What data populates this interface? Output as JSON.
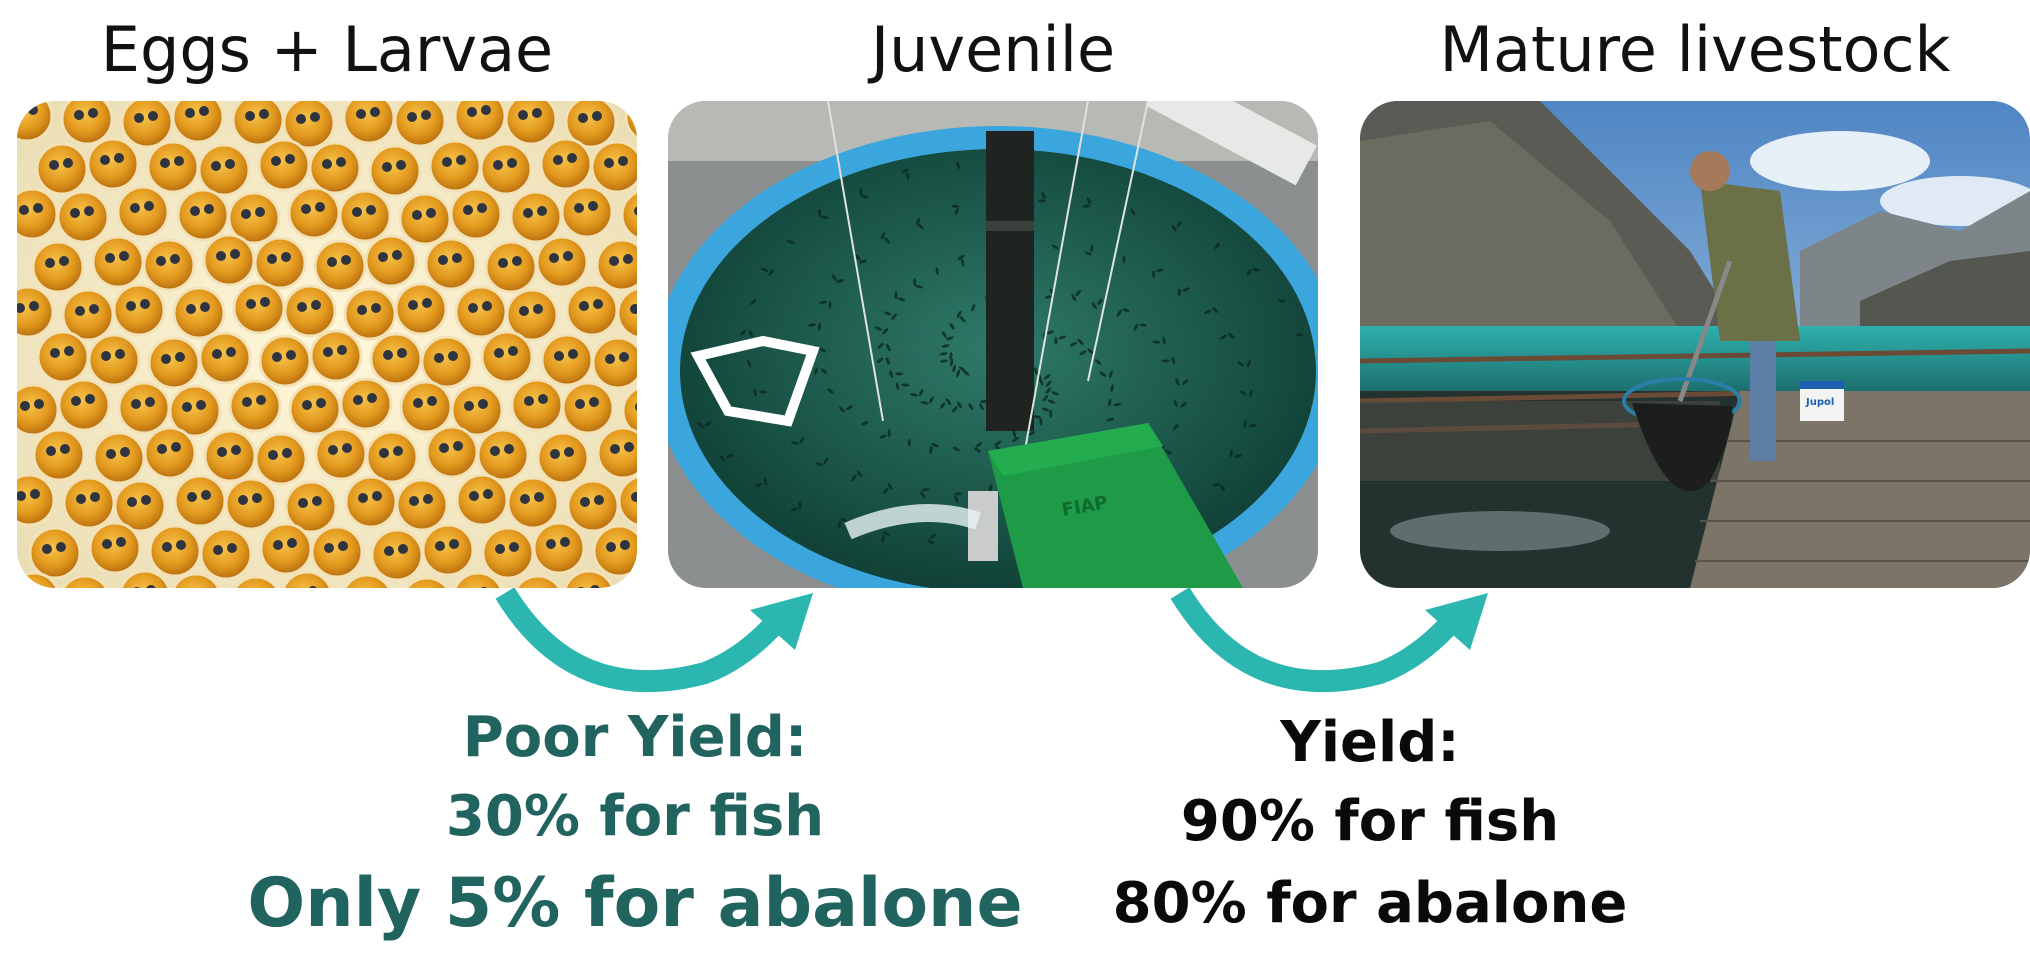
{
  "stages": [
    {
      "title": "Eggs + Larvae"
    },
    {
      "title": "Juvenile"
    },
    {
      "title": "Mature livestock"
    }
  ],
  "transitions": [
    {
      "heading": "Poor Yield:",
      "line1": "30% for fish",
      "line2": "Only 5% for abalone"
    },
    {
      "heading": "Yield:",
      "line1": "90% for fish",
      "line2": "80% for abalone"
    }
  ],
  "photo_text": {
    "feeder_brand": "FIAP",
    "bucket_brand": "Jupol"
  },
  "colors": {
    "accent_teal": "#20635f",
    "arrow_teal": "#2bb7b0",
    "text_dark": "#111111"
  }
}
